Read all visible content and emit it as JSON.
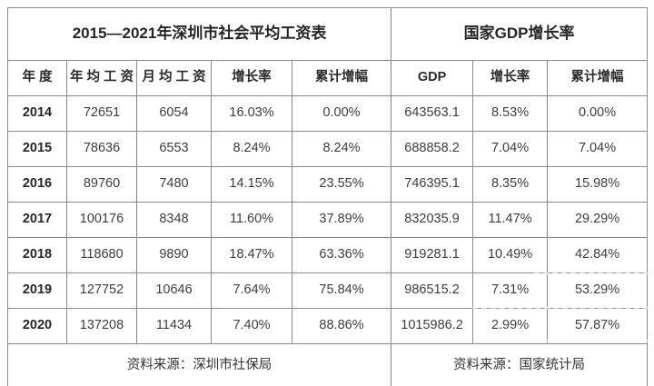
{
  "colors": {
    "accent_red": "#c2342a",
    "border_gray": "#8c8c8c",
    "text_dark": "#3d3d3d",
    "background": "#ffffff"
  },
  "chart_data": [
    {
      "type": "table",
      "title": "2015—2021年深圳市社会平均工资表",
      "columns": [
        "年 度",
        "年 均 工 资",
        "月 均 工 资",
        "增长率",
        "累计增幅"
      ],
      "rows": [
        [
          "2014",
          "72651",
          "6054",
          "16.03%",
          "0.00%"
        ],
        [
          "2015",
          "78636",
          "6553",
          "8.24%",
          "8.24%"
        ],
        [
          "2016",
          "89760",
          "7480",
          "14.15%",
          "23.55%"
        ],
        [
          "2017",
          "100176",
          "8348",
          "11.60%",
          "37.89%"
        ],
        [
          "2018",
          "118680",
          "9890",
          "18.47%",
          "63.36%"
        ],
        [
          "2019",
          "127752",
          "10646",
          "7.64%",
          "75.84%"
        ],
        [
          "2020",
          "137208",
          "11434",
          "7.40%",
          "88.86%"
        ]
      ],
      "source": "资料来源：深圳市社保局"
    },
    {
      "type": "table",
      "title": "国家GDP增长率",
      "columns": [
        "GDP",
        "增长率",
        "累计增幅"
      ],
      "rows": [
        [
          "643563.1",
          "8.53%",
          "0.00%"
        ],
        [
          "688858.2",
          "7.04%",
          "7.04%"
        ],
        [
          "746395.1",
          "8.35%",
          "15.98%"
        ],
        [
          "832035.9",
          "11.47%",
          "29.29%"
        ],
        [
          "919281.1",
          "10.49%",
          "42.84%"
        ],
        [
          "986515.2",
          "7.31%",
          "53.29%"
        ],
        [
          "1015986.2",
          "2.99%",
          "57.87%"
        ]
      ],
      "source": "资料来源：国家统计局"
    }
  ]
}
